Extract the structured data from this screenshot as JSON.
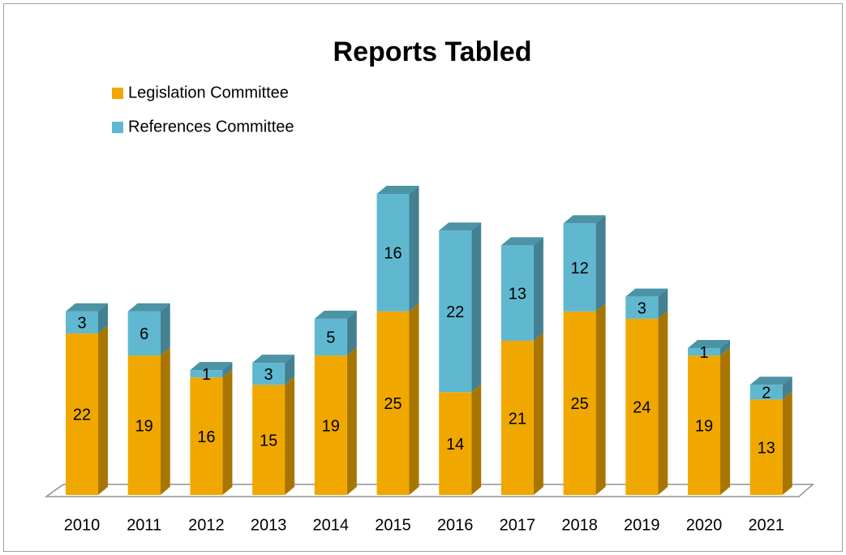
{
  "chart_data": {
    "type": "bar",
    "stacked": true,
    "title": "Reports Tabled",
    "categories": [
      "2010",
      "2011",
      "2012",
      "2013",
      "2014",
      "2015",
      "2016",
      "2017",
      "2018",
      "2019",
      "2020",
      "2021"
    ],
    "series": [
      {
        "name": "Legislation Committee",
        "color": "#f0a800",
        "values": [
          22,
          19,
          16,
          15,
          19,
          25,
          14,
          21,
          25,
          24,
          19,
          13
        ]
      },
      {
        "name": "References Committee",
        "color": "#5fb8d0",
        "values": [
          3,
          6,
          1,
          3,
          5,
          16,
          22,
          13,
          12,
          3,
          1,
          2
        ]
      }
    ],
    "legend": "top-left"
  }
}
